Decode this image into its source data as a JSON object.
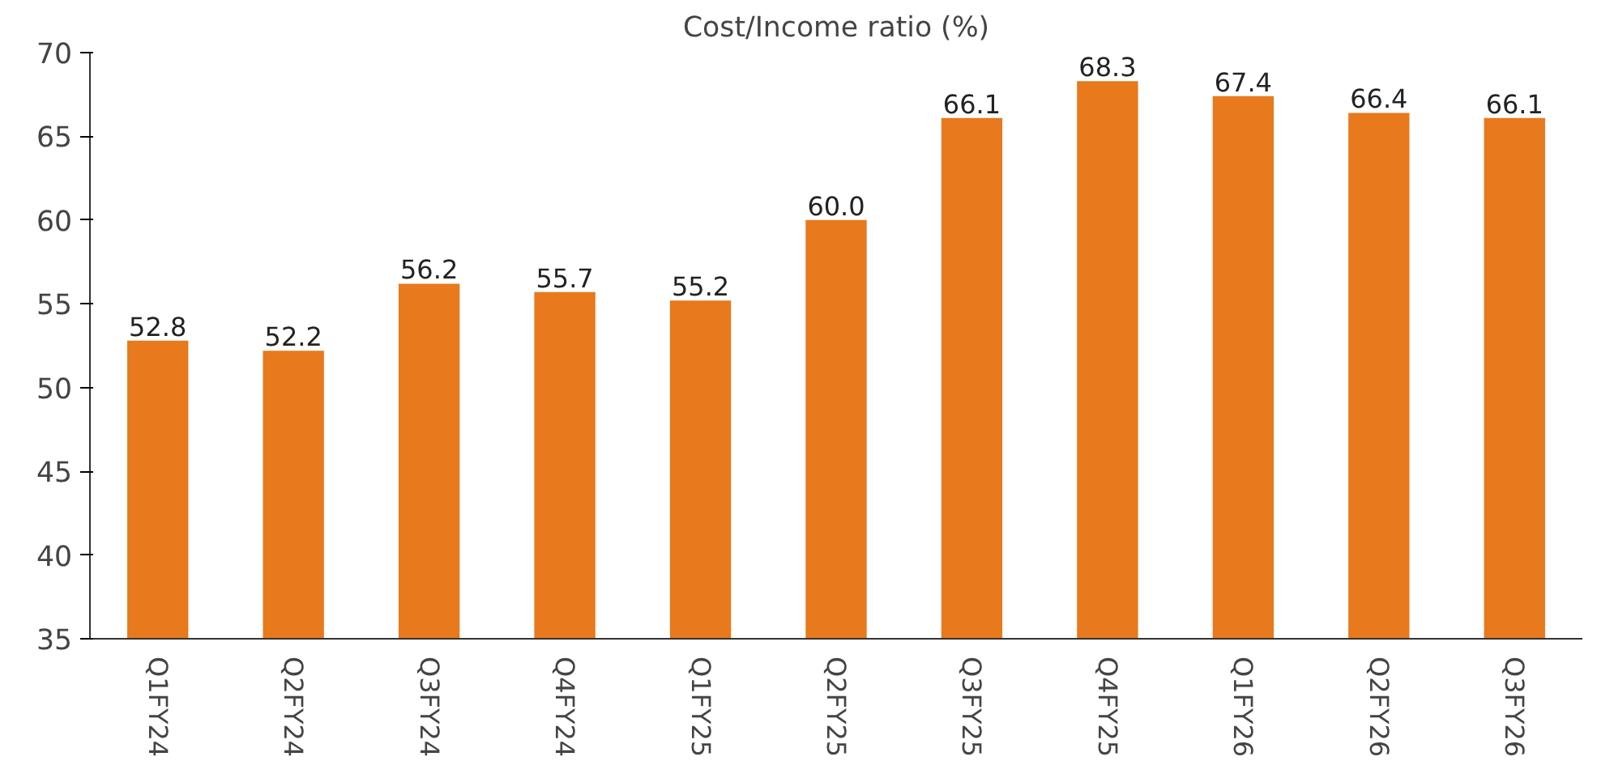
{
  "chart_data": {
    "type": "bar",
    "title": "Cost/Income ratio (%)",
    "categories": [
      "Q1FY24",
      "Q2FY24",
      "Q3FY24",
      "Q4FY24",
      "Q1FY25",
      "Q2FY25",
      "Q3FY25",
      "Q4FY25",
      "Q1FY26",
      "Q2FY26",
      "Q3FY26"
    ],
    "values": [
      52.8,
      52.2,
      56.2,
      55.7,
      55.2,
      60.0,
      66.1,
      68.3,
      67.4,
      66.4,
      66.1
    ],
    "value_labels": [
      "52.8",
      "52.2",
      "56.2",
      "55.7",
      "55.2",
      "60.0",
      "66.1",
      "68.3",
      "67.4",
      "66.4",
      "66.1"
    ],
    "color": "#e8791c",
    "ylim": [
      35,
      70
    ],
    "yticks": [
      35,
      40,
      45,
      50,
      55,
      60,
      65,
      70
    ],
    "grid": false
  }
}
